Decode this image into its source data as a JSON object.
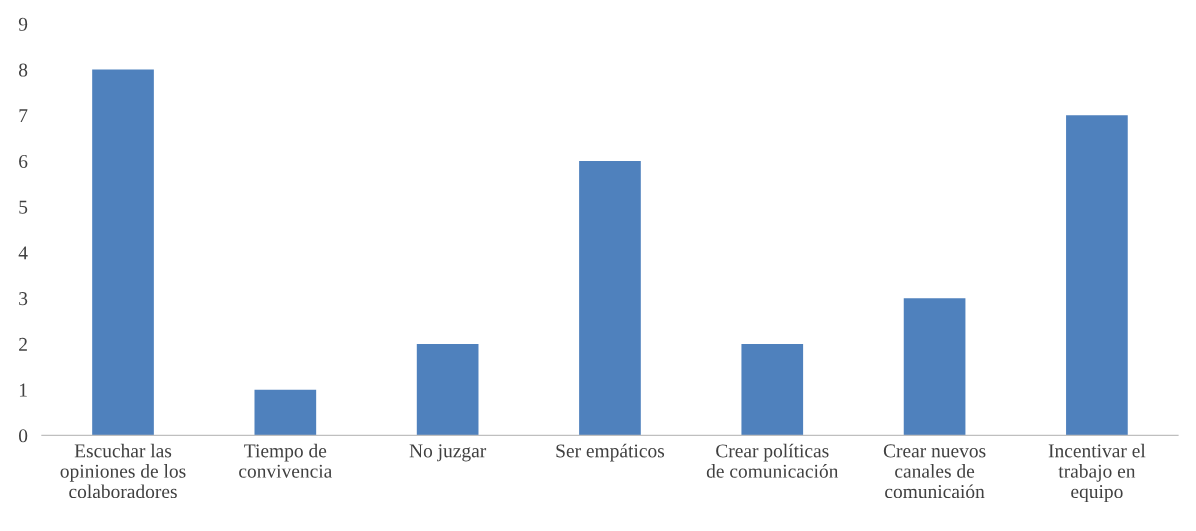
{
  "chart_data": {
    "type": "bar",
    "categories": [
      "Escuchar las\nopiniones de los\ncolaboradores",
      "Tiempo de\nconvivencia",
      "No juzgar",
      "Ser empáticos",
      "Crear políticas\nde comunicación",
      "Crear nuevos\ncanales de\ncomunicaión",
      "Incentivar el\ntrabajo en\nequipo"
    ],
    "values": [
      8,
      1,
      2,
      6,
      2,
      3,
      7
    ],
    "color": "#4f81bd",
    "ylim": [
      0,
      9
    ],
    "yticks": [
      0,
      1,
      2,
      3,
      4,
      5,
      6,
      7,
      8,
      9
    ],
    "grid": false,
    "legend": false
  }
}
